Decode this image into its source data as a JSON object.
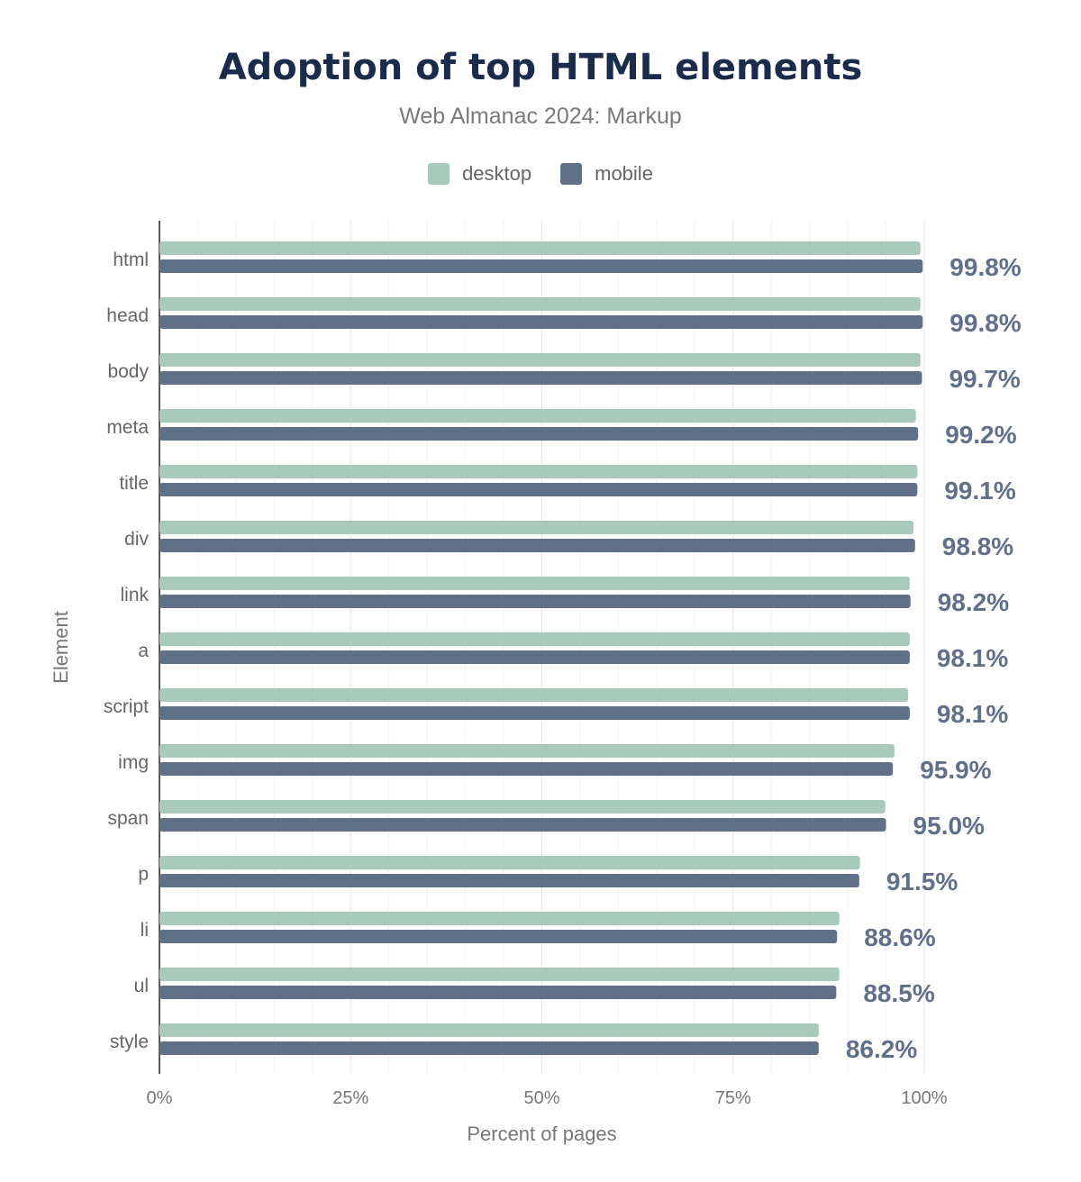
{
  "chart_data": {
    "type": "bar",
    "orientation": "horizontal",
    "title": "Adoption of top HTML elements",
    "subtitle": "Web Almanac 2024: Markup",
    "xlabel": "Percent of pages",
    "ylabel": "Element",
    "xlim": [
      0,
      100
    ],
    "x_ticks": [
      "0%",
      "25%",
      "50%",
      "75%",
      "100%"
    ],
    "grid": true,
    "legend_position": "top",
    "categories": [
      "html",
      "head",
      "body",
      "meta",
      "title",
      "div",
      "link",
      "a",
      "script",
      "img",
      "span",
      "p",
      "li",
      "ul",
      "style"
    ],
    "series": [
      {
        "name": "desktop",
        "color": "#a8cabb",
        "values": [
          99.5,
          99.5,
          99.5,
          98.9,
          99.1,
          98.6,
          98.1,
          98.1,
          97.9,
          96.1,
          94.9,
          91.6,
          88.9,
          88.9,
          86.2
        ]
      },
      {
        "name": "mobile",
        "color": "#617089",
        "values": [
          99.8,
          99.8,
          99.7,
          99.2,
          99.1,
          98.8,
          98.2,
          98.1,
          98.1,
          95.9,
          95.0,
          91.5,
          88.6,
          88.5,
          86.2
        ]
      }
    ],
    "data_labels": [
      "99.8%",
      "99.8%",
      "99.7%",
      "99.2%",
      "99.1%",
      "98.8%",
      "98.2%",
      "98.1%",
      "98.1%",
      "95.9%",
      "95.0%",
      "91.5%",
      "88.6%",
      "88.5%",
      "86.2%"
    ]
  }
}
